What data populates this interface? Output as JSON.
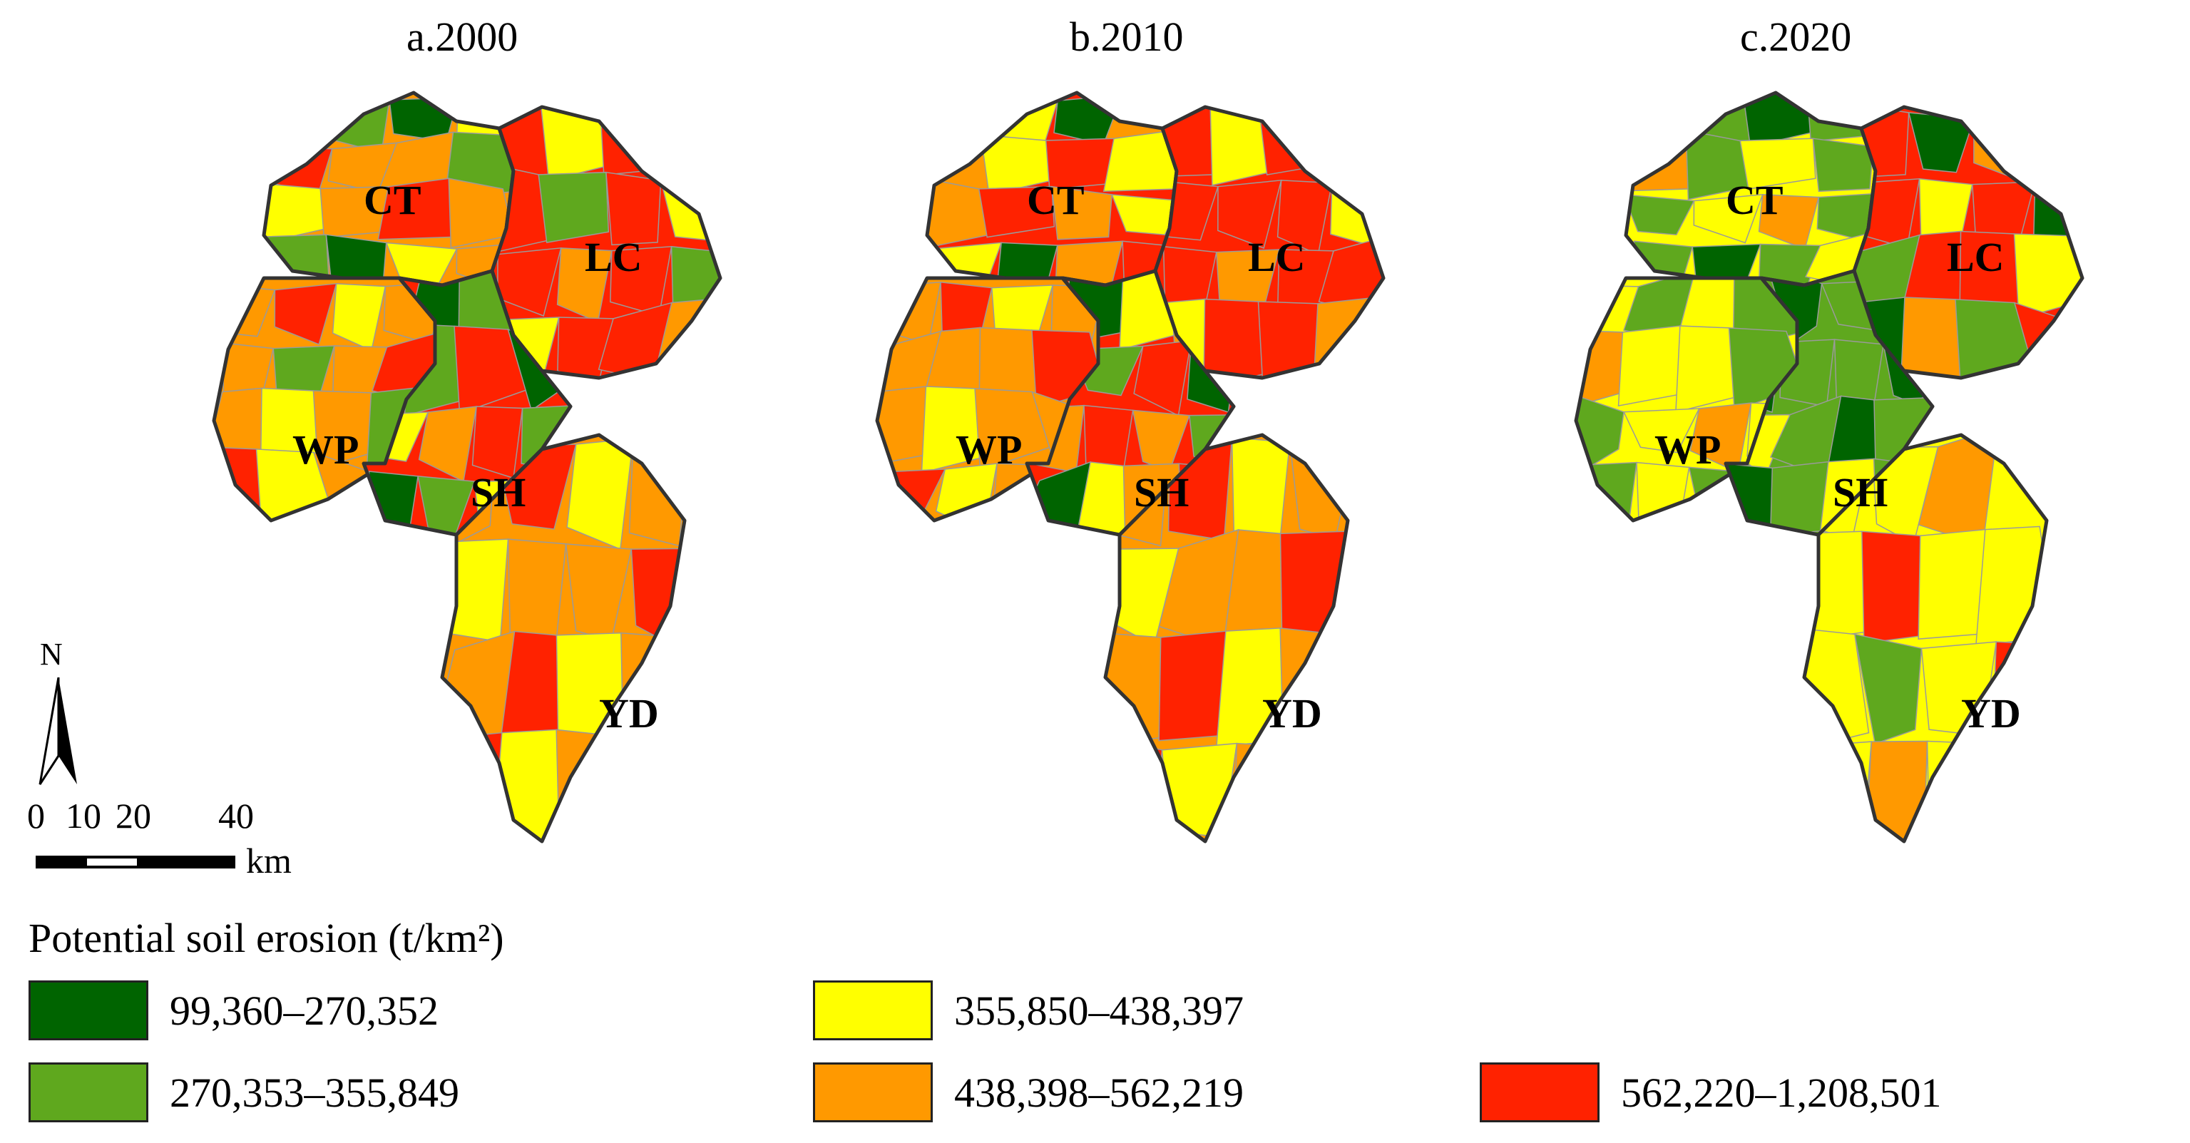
{
  "panels": [
    {
      "title": "a.2000"
    },
    {
      "title": "b.2010"
    },
    {
      "title": "c.2020"
    }
  ],
  "regions": [
    "CT",
    "LC",
    "WP",
    "SH",
    "YD"
  ],
  "colors": {
    "c1": "#006400",
    "c2": "#5fa81e",
    "c3": "#ffff00",
    "c4": "#ff9900",
    "c5": "#ff2200"
  },
  "legend": {
    "title": "Potential soil erosion (t/km²)",
    "items": [
      {
        "label": "99,360–270,352",
        "color": "#006400"
      },
      {
        "label": "270,353–355,849",
        "color": "#5fa81e"
      },
      {
        "label": "355,850–438,397",
        "color": "#ffff00"
      },
      {
        "label": "438,398–562,219",
        "color": "#ff9900"
      },
      {
        "label": "562,220–1,208,501",
        "color": "#ff2200"
      }
    ]
  },
  "north_arrow": {
    "label": "N"
  },
  "scalebar": {
    "ticks": [
      "0",
      "10",
      "20",
      "40"
    ],
    "unit": "km"
  }
}
